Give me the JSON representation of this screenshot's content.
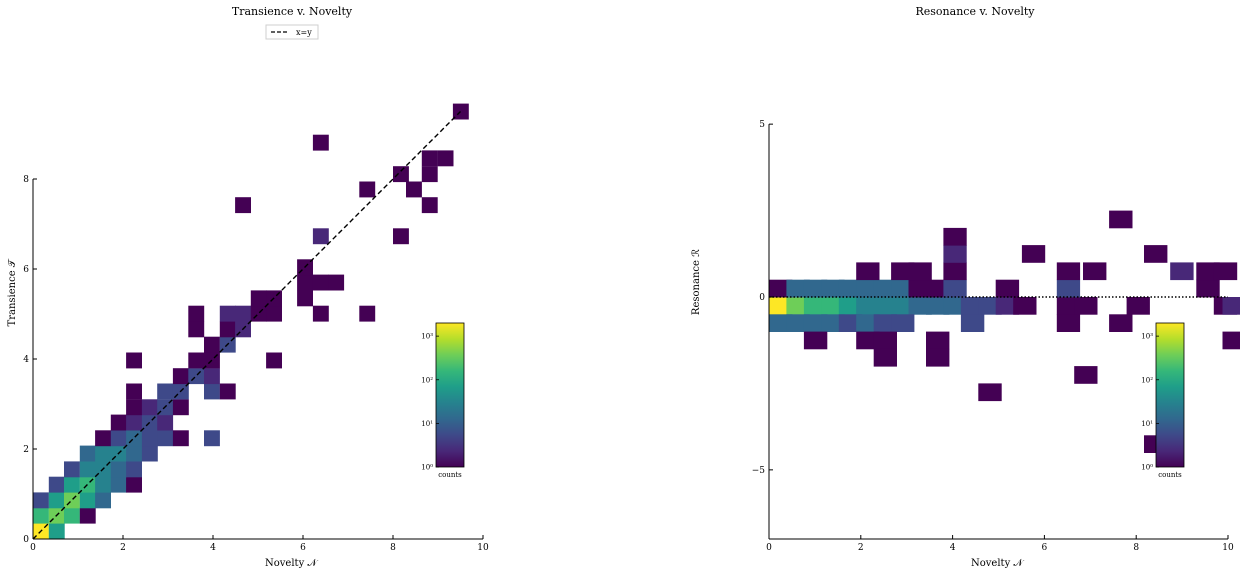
{
  "colors": {
    "viridis": [
      "#440154",
      "#482878",
      "#3e4989",
      "#31688e",
      "#26828e",
      "#1f9e89",
      "#35b779",
      "#6ece58",
      "#b5de2b",
      "#fde725"
    ],
    "axis": "#000000",
    "guide": "#000000"
  },
  "chart_data": [
    {
      "type": "heatmap",
      "title": "Transience v. Novelty",
      "xlabel": "Novelty 𝒩",
      "ylabel": "Transience 𝒯",
      "xlim": [
        0,
        10
      ],
      "ylim": [
        0,
        10
      ],
      "xticks": [
        "0",
        "2",
        "4",
        "6",
        "8",
        "10"
      ],
      "yticks": [
        "0",
        "2",
        "4",
        "6",
        "8"
      ],
      "bin_size": 0.345,
      "legend": {
        "label": "x=y",
        "placement": "top-center",
        "style": "dashed"
      },
      "reference_line": {
        "kind": "x=y",
        "from": [
          0,
          0
        ],
        "to": [
          9.5,
          9.5
        ]
      },
      "colorbar": {
        "label": "counts",
        "scale": "log",
        "range": [
          1,
          2000
        ],
        "ticks": [
          "10⁰",
          "10¹",
          "10²",
          "10³"
        ],
        "placement": "lower-right inset"
      },
      "grid": false,
      "cells": [
        [
          0.0,
          0.0,
          9.8
        ],
        [
          0.35,
          0.0,
          5.0
        ],
        [
          0.0,
          0.35,
          5.5
        ],
        [
          0.35,
          0.35,
          7.2
        ],
        [
          0.69,
          0.35,
          5.5
        ],
        [
          1.04,
          0.35,
          0.0
        ],
        [
          0.0,
          0.69,
          2.0
        ],
        [
          0.35,
          0.69,
          5.0
        ],
        [
          0.69,
          0.69,
          6.5
        ],
        [
          1.04,
          0.69,
          5.0
        ],
        [
          1.38,
          0.69,
          2.5
        ],
        [
          0.35,
          1.04,
          1.5
        ],
        [
          0.69,
          1.04,
          4.5
        ],
        [
          1.04,
          1.04,
          5.5
        ],
        [
          1.38,
          1.04,
          4.0
        ],
        [
          1.73,
          1.04,
          2.5
        ],
        [
          2.07,
          1.04,
          0.0
        ],
        [
          0.69,
          1.38,
          2.0
        ],
        [
          1.04,
          1.38,
          3.5
        ],
        [
          1.38,
          1.38,
          4.0
        ],
        [
          1.73,
          1.38,
          3.0
        ],
        [
          2.07,
          1.38,
          2.0
        ],
        [
          1.04,
          1.73,
          3.0
        ],
        [
          1.38,
          1.73,
          3.5
        ],
        [
          1.73,
          1.73,
          3.5
        ],
        [
          2.07,
          1.73,
          2.5
        ],
        [
          2.42,
          1.73,
          2.0
        ],
        [
          1.38,
          2.07,
          0.0
        ],
        [
          1.73,
          2.07,
          2.0
        ],
        [
          2.07,
          2.07,
          2.5
        ],
        [
          2.42,
          2.07,
          2.0
        ],
        [
          2.76,
          2.07,
          1.5
        ],
        [
          3.11,
          2.07,
          0.0
        ],
        [
          3.8,
          2.07,
          1.5
        ],
        [
          1.73,
          2.42,
          0.0
        ],
        [
          2.07,
          2.42,
          1.0
        ],
        [
          2.42,
          2.42,
          1.8
        ],
        [
          2.76,
          2.42,
          1.0
        ],
        [
          2.07,
          2.76,
          0.0
        ],
        [
          2.42,
          2.76,
          1.0
        ],
        [
          2.76,
          2.76,
          2.0
        ],
        [
          3.11,
          2.76,
          0.0
        ],
        [
          2.07,
          3.11,
          0.0
        ],
        [
          2.76,
          3.11,
          2.0
        ],
        [
          3.11,
          3.11,
          1.5
        ],
        [
          3.8,
          3.11,
          1.5
        ],
        [
          4.15,
          3.11,
          0.0
        ],
        [
          3.11,
          3.45,
          0.0
        ],
        [
          3.45,
          3.45,
          1.5
        ],
        [
          3.8,
          3.45,
          1.0
        ],
        [
          3.45,
          3.8,
          0.0
        ],
        [
          3.8,
          3.8,
          0.0
        ],
        [
          2.07,
          3.8,
          0.0
        ],
        [
          5.18,
          3.8,
          0.0
        ],
        [
          3.8,
          4.15,
          0.0
        ],
        [
          4.15,
          4.15,
          1.5
        ],
        [
          3.45,
          4.49,
          0.0
        ],
        [
          4.15,
          4.49,
          0.0
        ],
        [
          4.49,
          4.49,
          1.0
        ],
        [
          3.45,
          4.84,
          0.0
        ],
        [
          4.15,
          4.84,
          1.0
        ],
        [
          4.49,
          4.84,
          1.0
        ],
        [
          4.84,
          4.84,
          0.0
        ],
        [
          5.18,
          4.84,
          0.0
        ],
        [
          6.22,
          4.84,
          0.0
        ],
        [
          7.25,
          4.84,
          0.0
        ],
        [
          4.84,
          5.18,
          0.0
        ],
        [
          5.18,
          5.18,
          0.0
        ],
        [
          5.87,
          5.18,
          0.0
        ],
        [
          5.87,
          5.53,
          0.0
        ],
        [
          6.22,
          5.53,
          0.0
        ],
        [
          6.56,
          5.53,
          0.0
        ],
        [
          5.87,
          5.87,
          0.0
        ],
        [
          6.22,
          6.56,
          1.0
        ],
        [
          8.0,
          6.56,
          0.0
        ],
        [
          4.49,
          7.25,
          0.0
        ],
        [
          8.64,
          7.25,
          0.0
        ],
        [
          7.25,
          7.6,
          0.0
        ],
        [
          8.29,
          7.6,
          0.0
        ],
        [
          8.64,
          7.94,
          0.0
        ],
        [
          8.0,
          7.94,
          0.0
        ],
        [
          8.64,
          8.29,
          0.0
        ],
        [
          8.99,
          8.29,
          0.0
        ],
        [
          6.22,
          8.64,
          0.0
        ],
        [
          9.33,
          9.33,
          0.0
        ]
      ]
    },
    {
      "type": "heatmap",
      "title": "Resonance v. Novelty",
      "xlabel": "Novelty 𝒩",
      "ylabel": "Resonance ℛ",
      "xlim": [
        0,
        10
      ],
      "ylim": [
        -7,
        7
      ],
      "xticks": [
        "0",
        "2",
        "4",
        "6",
        "8",
        "10"
      ],
      "yticks": [
        "−5",
        "0",
        "5"
      ],
      "bin_size": 0.5,
      "reference_line": {
        "kind": "y=0",
        "style": "dotted"
      },
      "colorbar": {
        "label": "counts",
        "scale": "log",
        "range": [
          1,
          2000
        ],
        "ticks": [
          "10⁰",
          "10¹",
          "10²",
          "10³"
        ],
        "placement": "lower-right inset"
      },
      "grid": false,
      "cells": [
        [
          0.0,
          -0.5,
          9.8
        ],
        [
          0.38,
          -0.5,
          7.0
        ],
        [
          0.76,
          -0.5,
          6.4
        ],
        [
          1.14,
          -0.5,
          5.6
        ],
        [
          1.52,
          -0.5,
          5.0
        ],
        [
          1.9,
          -0.5,
          4.0
        ],
        [
          2.28,
          -0.5,
          3.5
        ],
        [
          2.66,
          -0.5,
          3.8
        ],
        [
          3.04,
          -0.5,
          3.0
        ],
        [
          3.42,
          -0.5,
          2.8
        ],
        [
          3.8,
          -0.5,
          2.5
        ],
        [
          4.18,
          -0.5,
          2.2
        ],
        [
          4.56,
          -0.5,
          1.8
        ],
        [
          4.94,
          -0.5,
          1.3
        ],
        [
          5.32,
          -0.5,
          0.0
        ],
        [
          6.27,
          -0.5,
          0.0
        ],
        [
          6.65,
          -0.5,
          0.0
        ],
        [
          7.79,
          -0.5,
          0.0
        ],
        [
          9.69,
          -0.5,
          0.0
        ],
        [
          9.88,
          -0.5,
          1.0
        ],
        [
          0.0,
          0.0,
          0.0
        ],
        [
          0.38,
          0.0,
          3.2
        ],
        [
          0.76,
          0.0,
          3.0
        ],
        [
          1.14,
          0.0,
          3.0
        ],
        [
          1.52,
          0.0,
          3.0
        ],
        [
          1.9,
          0.0,
          3.0
        ],
        [
          2.28,
          0.0,
          3.0
        ],
        [
          2.66,
          0.0,
          2.8
        ],
        [
          3.04,
          0.0,
          0.0
        ],
        [
          3.42,
          0.0,
          0.0
        ],
        [
          3.8,
          0.0,
          2.0
        ],
        [
          4.94,
          0.0,
          0.0
        ],
        [
          6.27,
          0.0,
          1.5
        ],
        [
          9.31,
          0.0,
          0.0
        ],
        [
          0.0,
          -1.0,
          3.0
        ],
        [
          0.38,
          -1.0,
          3.0
        ],
        [
          0.76,
          -1.0,
          3.0
        ],
        [
          1.14,
          -1.0,
          3.0
        ],
        [
          1.52,
          -1.0,
          2.2
        ],
        [
          1.9,
          -1.0,
          2.5
        ],
        [
          2.28,
          -1.0,
          2.2
        ],
        [
          2.66,
          -1.0,
          2.0
        ],
        [
          4.18,
          -1.0,
          2.0
        ],
        [
          6.27,
          -1.0,
          0.0
        ],
        [
          7.41,
          -1.0,
          0.0
        ],
        [
          0.76,
          -1.5,
          0.0
        ],
        [
          1.9,
          -1.5,
          0.0
        ],
        [
          2.28,
          -1.5,
          0.0
        ],
        [
          3.42,
          -1.5,
          0.0
        ],
        [
          9.88,
          -1.5,
          0.0
        ],
        [
          2.28,
          -2.0,
          0.0
        ],
        [
          3.42,
          -2.0,
          0.0
        ],
        [
          6.65,
          -2.5,
          0.0
        ],
        [
          4.56,
          -3.0,
          0.0
        ],
        [
          8.17,
          -4.5,
          0.0
        ],
        [
          1.9,
          0.5,
          0.0
        ],
        [
          2.66,
          0.5,
          0.0
        ],
        [
          3.04,
          0.5,
          0.0
        ],
        [
          3.8,
          0.5,
          0.0
        ],
        [
          6.27,
          0.5,
          0.0
        ],
        [
          6.84,
          0.5,
          0.0
        ],
        [
          8.74,
          0.5,
          1.0
        ],
        [
          9.31,
          0.5,
          0.0
        ],
        [
          9.69,
          0.5,
          0.0
        ],
        [
          3.8,
          1.0,
          1.0
        ],
        [
          5.51,
          1.0,
          0.0
        ],
        [
          8.17,
          1.0,
          0.0
        ],
        [
          3.8,
          1.5,
          0.0
        ],
        [
          7.41,
          2.0,
          0.0
        ]
      ]
    }
  ],
  "labels": {
    "left_title": "Transience v. Novelty",
    "right_title": "Resonance v. Novelty",
    "legend_label": "x=y",
    "cb_label": "counts"
  }
}
